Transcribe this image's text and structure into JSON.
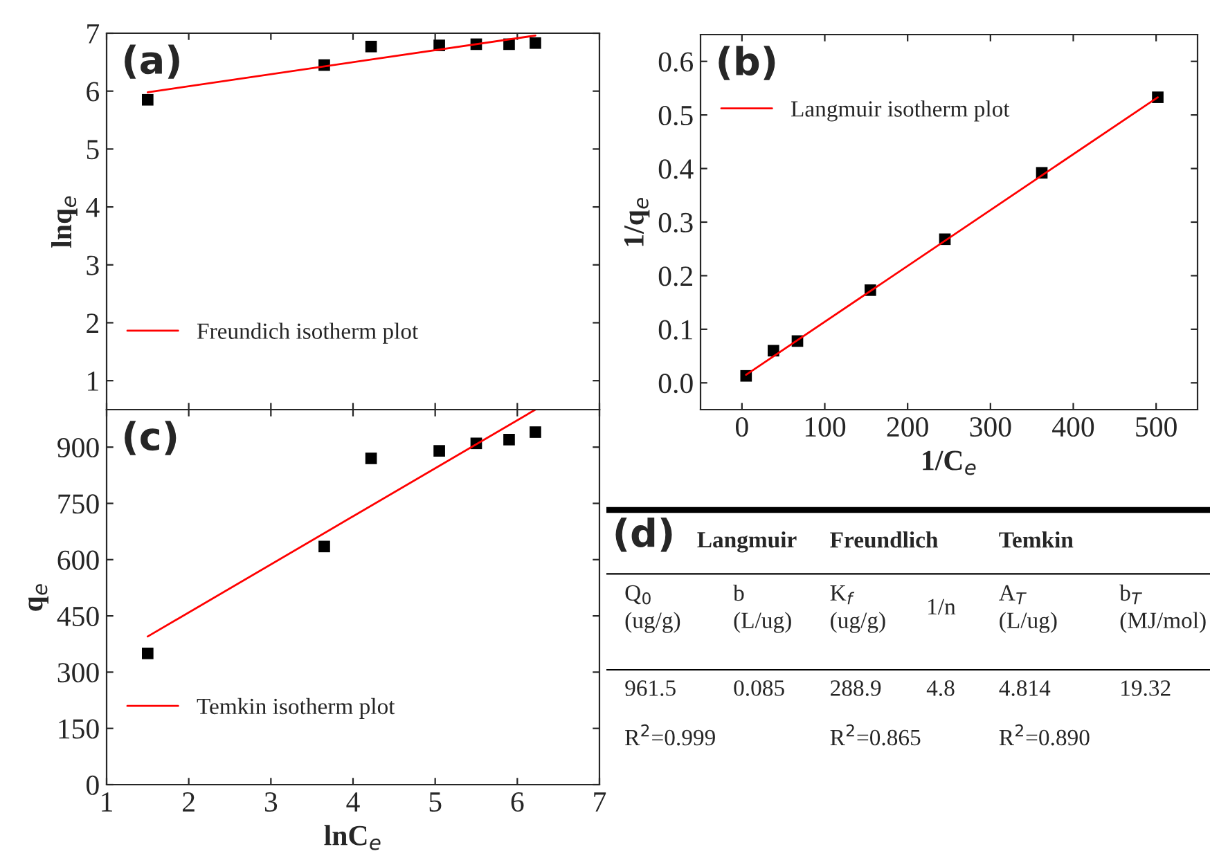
{
  "chart_data": [
    {
      "type": "scatter",
      "title": "(a)",
      "ylabel": "lnq$_{e}$",
      "xlim": [
        1,
        7
      ],
      "ylim": [
        0.5,
        7
      ],
      "xticks": [
        {
          "value": 1,
          "label": null
        },
        {
          "value": 2,
          "label": null
        },
        {
          "value": 3,
          "label": null
        },
        {
          "value": 4,
          "label": null
        },
        {
          "value": 5,
          "label": null
        },
        {
          "value": 6,
          "label": null
        },
        {
          "value": 7,
          "label": null
        }
      ],
      "yticks": [
        1,
        2,
        3,
        4,
        5,
        6,
        7
      ],
      "tick_labels": "y",
      "legend": "lower left",
      "grid": false,
      "series": [
        {
          "type": "scatter",
          "color": "#000000",
          "marker": "square",
          "x": [
            1.5,
            3.65,
            4.22,
            5.05,
            5.5,
            5.9,
            6.22
          ],
          "values": [
            5.85,
            6.45,
            6.77,
            6.79,
            6.81,
            6.81,
            6.83
          ]
        },
        {
          "type": "line",
          "name": "Freundich isotherm plot",
          "color": "#ff0000",
          "marker": "none",
          "x": [
            1.5,
            6.22
          ],
          "values": [
            5.98,
            6.96
          ]
        }
      ]
    },
    {
      "type": "scatter",
      "title": "(b)",
      "xlabel": "1/C$_{e}$",
      "ylabel": "1/q$_{e}$",
      "xlim": [
        -50,
        550
      ],
      "ylim": [
        -0.05,
        0.65
      ],
      "xticks": [
        0,
        100,
        200,
        300,
        400,
        500
      ],
      "yticks": [
        {
          "value": 0,
          "label": "0.0"
        },
        0.1,
        0.2,
        0.3,
        0.4,
        0.5,
        0.6
      ],
      "legend": "upper left",
      "grid": false,
      "series": [
        {
          "type": "scatter",
          "color": "#000000",
          "marker": "square",
          "x": [
            5,
            38,
            67,
            155,
            245,
            362,
            502
          ],
          "values": [
            0.013,
            0.06,
            0.078,
            0.173,
            0.268,
            0.392,
            0.533
          ]
        },
        {
          "type": "line",
          "name": "Langmuir isotherm plot",
          "color": "#ff0000",
          "marker": "none",
          "x": [
            5,
            502
          ],
          "values": [
            0.015,
            0.533
          ]
        }
      ]
    },
    {
      "type": "scatter",
      "title": "(c)",
      "xlabel": "lnC$_{e}$",
      "ylabel": "q$_{e}$",
      "xlim": [
        1,
        7
      ],
      "ylim": [
        0,
        1000
      ],
      "xticks": [
        1,
        2,
        3,
        4,
        5,
        6,
        7
      ],
      "yticks": [
        0,
        150,
        300,
        450,
        600,
        750,
        900
      ],
      "legend": "lower left",
      "grid": false,
      "series": [
        {
          "type": "scatter",
          "color": "#000000",
          "marker": "square",
          "x": [
            1.5,
            3.65,
            4.22,
            5.05,
            5.5,
            5.9,
            6.22
          ],
          "values": [
            350,
            635,
            870,
            890,
            910,
            920,
            940
          ]
        },
        {
          "type": "line",
          "name": "Temkin isotherm plot",
          "color": "#ff0000",
          "marker": "none",
          "x": [
            1.5,
            6.22
          ],
          "values": [
            395,
            1000
          ]
        }
      ]
    },
    {
      "type": "other",
      "title": "(d)",
      "annotations": [
        "Langmuir",
        "Freundlich",
        "Temkin",
        "Q$_{0}$\n(ug/g)",
        "b\n(L/ug)",
        "K$_{f}$\n(ug/g)",
        "1/n",
        "A$_{T}$\n(L/ug)",
        "b$_{T}$\n(MJ/mol)",
        "961.5",
        "0.085",
        "288.9",
        "4.8",
        "4.814",
        "19.32",
        "R$^{2}$=0.999",
        "R$^{2}$=0.865",
        "R$^{2}$=0.890"
      ]
    }
  ]
}
